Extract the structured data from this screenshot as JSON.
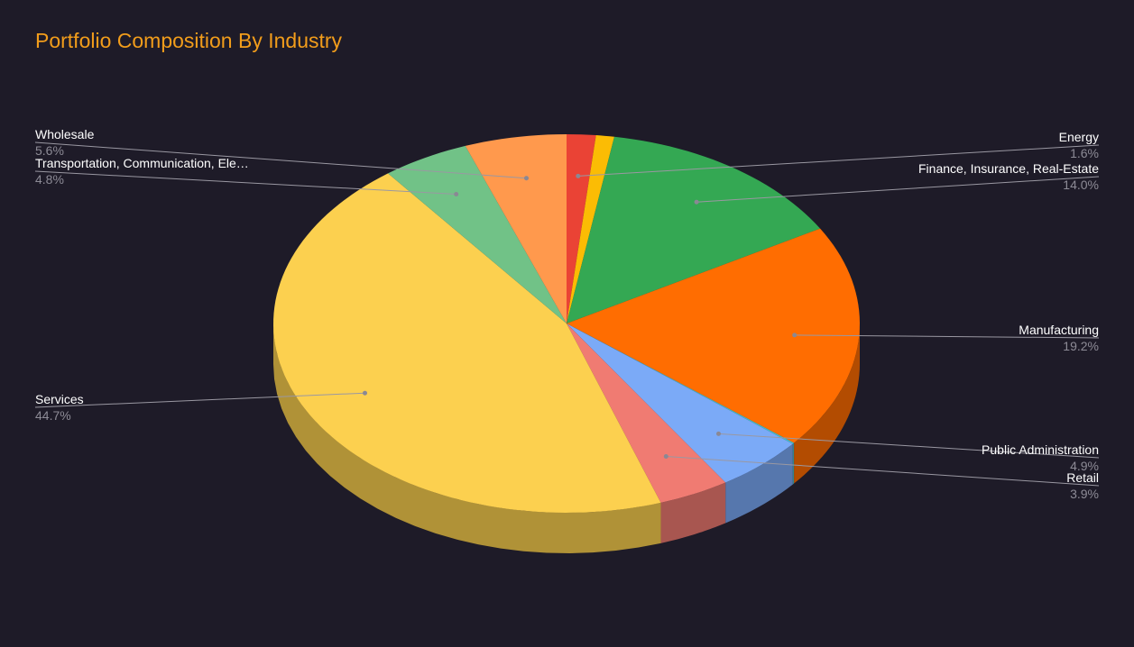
{
  "chart_data": {
    "type": "pie",
    "title": "Portfolio Composition By Industry",
    "start_category": "Energy",
    "series": [
      {
        "name": "Energy",
        "value": 1.6,
        "label": "1.6%",
        "color": "#ea4335",
        "side": "right"
      },
      {
        "name": "Finance, Insurance, Real-Estate",
        "value": 14.0,
        "label": "14.0%",
        "color": "#34a853",
        "side": "right"
      },
      {
        "name": "Manufacturing",
        "value": 19.2,
        "label": "19.2%",
        "color": "#ff6d01",
        "side": "right"
      },
      {
        "name": "Public Administration",
        "value": 4.9,
        "label": "4.9%",
        "color": "#7baaf7",
        "side": "right"
      },
      {
        "name": "Retail",
        "value": 3.9,
        "label": "3.9%",
        "color": "#f07b72",
        "side": "right"
      },
      {
        "name": "Services",
        "value": 44.7,
        "label": "44.7%",
        "color": "#fcd04f",
        "side": "left"
      },
      {
        "name": "Transportation, Communication, Ele…",
        "value": 4.8,
        "label": "4.8%",
        "color": "#71c287",
        "side": "left"
      },
      {
        "name": "Wholesale",
        "value": 5.6,
        "label": "5.6%",
        "color": "#ff994d",
        "side": "left"
      }
    ],
    "extra_slices": [
      {
        "value": 1.0,
        "color": "#fbbc04"
      },
      {
        "value": 0.1,
        "color": "#46bdc6"
      }
    ],
    "legend": "labeled slices"
  }
}
